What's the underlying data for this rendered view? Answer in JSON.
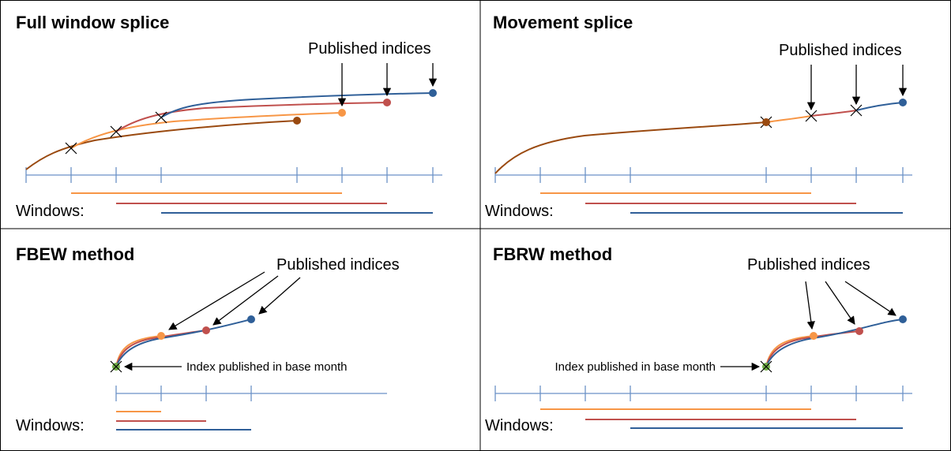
{
  "panels": [
    {
      "title": "Full window splice",
      "annotation": "Published indices",
      "windows_label": "Windows:"
    },
    {
      "title": "Movement splice",
      "annotation": "Published indices",
      "windows_label": "Windows:"
    },
    {
      "title": "FBEW method",
      "annotation": "Published indices",
      "windows_label": "Windows:",
      "base_note": "Index published in base month"
    },
    {
      "title": "FBRW method",
      "annotation": "Published indices",
      "windows_label": "Windows:",
      "base_note": "Index published in base month"
    }
  ]
}
